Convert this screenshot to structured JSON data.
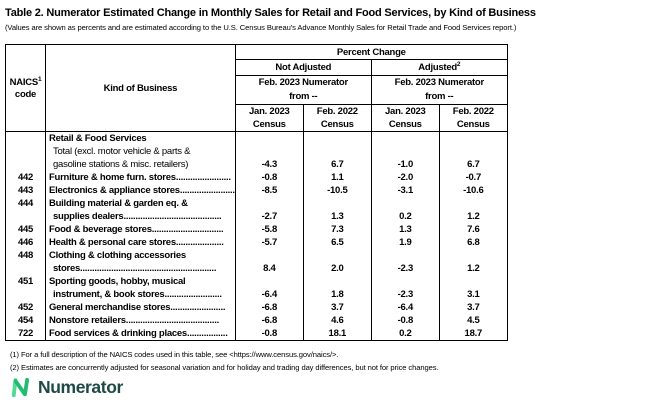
{
  "title": "Table 2.  Numerator Estimated Change in Monthly Sales for Retail and Food Services, by Kind of Business",
  "subtitle": "(Values are shown as percents and are estimated according to the U.S. Census Bureau's Advance Monthly Sales for Retail Trade and Food Services report.)",
  "table": {
    "header": {
      "naics": "NAICS",
      "naics_sup": "1",
      "code": "code",
      "kind_of_business": "Kind of Business",
      "percent_change": "Percent Change",
      "not_adjusted": "Not Adjusted",
      "adjusted": "Adjusted",
      "adjusted_sup": "2",
      "numerator_line1": "Feb. 2023 Numerator",
      "numerator_line2": "from --",
      "jan_2023": "Jan. 2023",
      "feb_2022": "Feb. 2022",
      "census": "Census"
    },
    "rows": [
      {
        "code": "",
        "lines": [
          {
            "t": "Retail & Food Services",
            "b": 1,
            "ind": 0
          },
          {
            "t": "Total (excl. motor vehicle & parts &",
            "b": 0,
            "ind": 1
          },
          {
            "t": "gasoline stations & misc. retailers)",
            "b": 0,
            "ind": 1
          }
        ],
        "values": [
          "-4.3",
          "6.7",
          "-1.0",
          "6.7"
        ]
      },
      {
        "code": "442",
        "lines": [
          {
            "t": "Furniture & home furn. stores.......................",
            "b": 1,
            "ind": 0
          }
        ],
        "values": [
          "-0.8",
          "1.1",
          "-2.0",
          "-0.7"
        ]
      },
      {
        "code": "443",
        "lines": [
          {
            "t": "Electronics & appliance stores.......................",
            "b": 1,
            "ind": 0
          }
        ],
        "values": [
          "-8.5",
          "-10.5",
          "-3.1",
          "-10.6"
        ]
      },
      {
        "code": "444",
        "lines": [
          {
            "t": "Building material & garden eq. &",
            "b": 1,
            "ind": 0
          },
          {
            "t": "supplies dealers.........................................",
            "b": 1,
            "ind": 1
          }
        ],
        "values": [
          "-2.7",
          "1.3",
          "0.2",
          "1.2"
        ]
      },
      {
        "code": "445",
        "lines": [
          {
            "t": "Food & beverage stores..............................",
            "b": 1,
            "ind": 0
          }
        ],
        "values": [
          "-5.8",
          "7.3",
          "1.3",
          "7.6"
        ]
      },
      {
        "code": "446",
        "lines": [
          {
            "t": "Health & personal care stores....................",
            "b": 1,
            "ind": 0
          }
        ],
        "values": [
          "-5.7",
          "6.5",
          "1.9",
          "6.8"
        ]
      },
      {
        "code": "448",
        "lines": [
          {
            "t": "Clothing & clothing accessories",
            "b": 1,
            "ind": 0
          },
          {
            "t": "stores.........................................................",
            "b": 1,
            "ind": 1
          }
        ],
        "values": [
          "8.4",
          "2.0",
          "-2.3",
          "1.2"
        ]
      },
      {
        "code": "451",
        "lines": [
          {
            "t": "Sporting goods, hobby, musical",
            "b": 1,
            "ind": 0
          },
          {
            "t": "instrument, & book stores........................",
            "b": 1,
            "ind": 1
          }
        ],
        "values": [
          "-6.4",
          "1.8",
          "-2.3",
          "3.1"
        ]
      },
      {
        "code": "452",
        "lines": [
          {
            "t": "General merchandise stores.......................",
            "b": 1,
            "ind": 0
          }
        ],
        "values": [
          "-6.8",
          "3.7",
          "-6.4",
          "3.7"
        ]
      },
      {
        "code": "454",
        "lines": [
          {
            "t": "Nonstore retailers.......................................",
            "b": 1,
            "ind": 0
          }
        ],
        "values": [
          "-6.8",
          "4.6",
          "-0.8",
          "4.5"
        ]
      },
      {
        "code": "722",
        "lines": [
          {
            "t": "Food services & drinking places.................",
            "b": 1,
            "ind": 0
          }
        ],
        "values": [
          "-0.8",
          "18.1",
          "0.2",
          "18.7"
        ]
      }
    ]
  },
  "footnotes": [
    "(1)  For a full description of the NAICS codes used in this table, see <https://www.census.gov/naics/>.",
    "(2)  Estimates are concurrently adjusted for seasonal variation and for holiday and trading day differences, but not for price changes."
  ],
  "logo": {
    "text": "Numerator",
    "mark_green_light": "#54da96",
    "mark_green": "#21bd72",
    "wordmark_color": "#1d4a45"
  }
}
